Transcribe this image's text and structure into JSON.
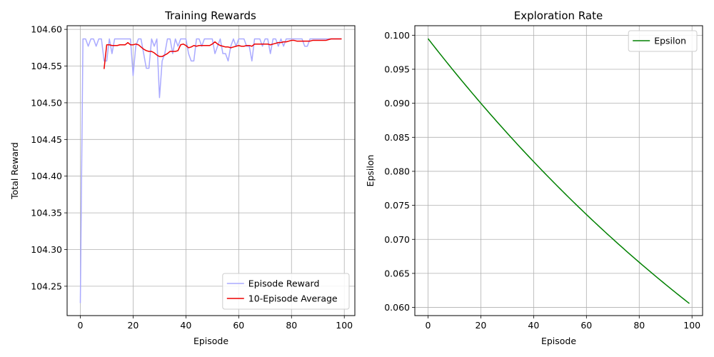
{
  "chart_data": [
    {
      "type": "line",
      "title": "Training Rewards",
      "xlabel": "Episode",
      "ylabel": "Total Reward",
      "xlim": [
        -5,
        104
      ],
      "ylim": [
        104.21,
        104.605
      ],
      "xticks": [
        0,
        20,
        40,
        60,
        80,
        100
      ],
      "yticks": [
        104.25,
        104.3,
        104.35,
        104.4,
        104.45,
        104.5,
        104.55,
        104.6
      ],
      "ytick_labels": [
        "104.25",
        "104.30",
        "104.35",
        "104.40",
        "104.45",
        "104.50",
        "104.55",
        "104.60"
      ],
      "grid": true,
      "legend": "lower right",
      "series": [
        {
          "name": "Episode Reward",
          "color": "#aaaaff",
          "x_start": 0,
          "values": [
            104.227,
            104.587,
            104.587,
            104.577,
            104.587,
            104.587,
            104.577,
            104.587,
            104.587,
            104.557,
            104.557,
            104.587,
            104.567,
            104.587,
            104.587,
            104.587,
            104.587,
            104.587,
            104.587,
            104.587,
            104.537,
            104.577,
            104.587,
            104.587,
            104.567,
            104.547,
            104.547,
            104.587,
            104.577,
            104.587,
            104.507,
            104.557,
            104.567,
            104.587,
            104.587,
            104.567,
            104.587,
            104.577,
            104.587,
            104.587,
            104.587,
            104.567,
            104.557,
            104.557,
            104.587,
            104.587,
            104.577,
            104.587,
            104.587,
            104.587,
            104.587,
            104.567,
            104.577,
            104.587,
            104.567,
            104.567,
            104.557,
            104.577,
            104.587,
            104.577,
            104.587,
            104.587,
            104.587,
            104.577,
            104.577,
            104.557,
            104.587,
            104.587,
            104.587,
            104.577,
            104.587,
            104.587,
            104.567,
            104.587,
            104.587,
            104.577,
            104.587,
            104.577,
            104.587,
            104.587,
            104.587,
            104.587,
            104.587,
            104.587,
            104.587,
            104.577,
            104.577,
            104.587,
            104.587,
            104.587,
            104.587,
            104.587,
            104.587,
            104.587,
            104.587,
            104.587,
            104.587,
            104.587,
            104.587,
            104.587
          ]
        },
        {
          "name": "10-Episode Average",
          "color": "#ee0000",
          "x_start": 9,
          "values": [
            104.546,
            104.579,
            104.579,
            104.578,
            104.578,
            104.578,
            104.579,
            104.579,
            104.579,
            104.582,
            104.579,
            104.579,
            104.58,
            104.579,
            104.576,
            104.573,
            104.571,
            104.57,
            104.57,
            104.568,
            104.565,
            104.563,
            104.563,
            104.565,
            104.567,
            104.57,
            104.57,
            104.57,
            104.571,
            104.579,
            104.58,
            104.578,
            104.575,
            104.576,
            104.578,
            104.577,
            104.578,
            104.578,
            104.578,
            104.578,
            104.578,
            104.58,
            104.583,
            104.58,
            104.578,
            104.577,
            104.576,
            104.576,
            104.575,
            104.576,
            104.577,
            104.578,
            104.577,
            104.577,
            104.578,
            104.578,
            104.577,
            104.58,
            104.58,
            104.58,
            104.58,
            104.58,
            104.58,
            104.579,
            104.58,
            104.581,
            104.582,
            104.582,
            104.583,
            104.583,
            104.584,
            104.585,
            104.585,
            104.584,
            104.584,
            104.584,
            104.584,
            104.584,
            104.584,
            104.585,
            104.585,
            104.585,
            104.585,
            104.585,
            104.585,
            104.586,
            104.587,
            104.587,
            104.587,
            104.587,
            104.587
          ]
        }
      ]
    },
    {
      "type": "line",
      "title": "Exploration Rate",
      "xlabel": "Episode",
      "ylabel": "Epsilon",
      "xlim": [
        -5,
        104
      ],
      "ylim": [
        0.0588,
        0.1014
      ],
      "xticks": [
        0,
        20,
        40,
        60,
        80,
        100
      ],
      "yticks": [
        0.06,
        0.065,
        0.07,
        0.075,
        0.08,
        0.085,
        0.09,
        0.095,
        0.1
      ],
      "ytick_labels": [
        "0.060",
        "0.065",
        "0.070",
        "0.075",
        "0.080",
        "0.085",
        "0.090",
        "0.095",
        "0.100"
      ],
      "grid": true,
      "legend": "upper right",
      "series": [
        {
          "name": "Epsilon",
          "color": "#008000",
          "x_start": 0,
          "epsilon_start": 0.0995,
          "decay": 0.995,
          "count": 100
        }
      ]
    }
  ]
}
